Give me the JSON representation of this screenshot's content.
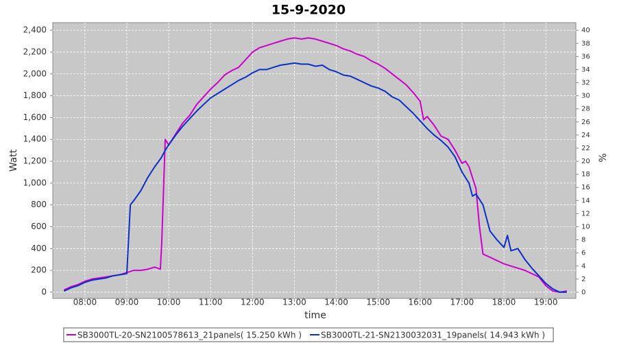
{
  "chart_data": {
    "type": "line",
    "title": "15-9-2020",
    "x_label": "time",
    "y_label": "Watt",
    "y2_label": "%",
    "x": [
      "07:30",
      "07:40",
      "07:50",
      "08:00",
      "08:10",
      "08:20",
      "08:30",
      "08:40",
      "08:50",
      "09:00",
      "09:05",
      "09:10",
      "09:20",
      "09:30",
      "09:40",
      "09:48",
      "09:50",
      "09:55",
      "10:00",
      "10:10",
      "10:20",
      "10:30",
      "10:40",
      "10:50",
      "11:00",
      "11:10",
      "11:20",
      "11:30",
      "11:40",
      "11:50",
      "12:00",
      "12:10",
      "12:20",
      "12:30",
      "12:40",
      "12:50",
      "13:00",
      "13:10",
      "13:20",
      "13:30",
      "13:40",
      "13:50",
      "14:00",
      "14:10",
      "14:20",
      "14:30",
      "14:40",
      "14:50",
      "15:00",
      "15:10",
      "15:20",
      "15:30",
      "15:40",
      "15:50",
      "16:00",
      "16:05",
      "16:10",
      "16:20",
      "16:30",
      "16:40",
      "16:50",
      "17:00",
      "17:05",
      "17:10",
      "17:15",
      "17:20",
      "17:25",
      "17:30",
      "17:40",
      "17:50",
      "18:00",
      "18:05",
      "18:10",
      "18:20",
      "18:30",
      "18:40",
      "18:50",
      "19:00",
      "19:10",
      "19:20",
      "19:30"
    ],
    "series": [
      {
        "name": "SB3000TL-20-SN2100578613_21panels( 15.250 kWh )",
        "color": "#cc00cc",
        "values": [
          20,
          50,
          70,
          100,
          120,
          130,
          140,
          150,
          160,
          180,
          190,
          200,
          200,
          210,
          230,
          210,
          450,
          1400,
          1350,
          1450,
          1550,
          1620,
          1720,
          1790,
          1860,
          1920,
          1990,
          2030,
          2060,
          2130,
          2200,
          2240,
          2260,
          2280,
          2300,
          2320,
          2330,
          2320,
          2330,
          2320,
          2300,
          2280,
          2260,
          2230,
          2210,
          2180,
          2160,
          2120,
          2090,
          2050,
          2000,
          1950,
          1900,
          1830,
          1750,
          1580,
          1610,
          1530,
          1430,
          1400,
          1300,
          1180,
          1200,
          1150,
          1050,
          950,
          600,
          350,
          320,
          290,
          260,
          250,
          240,
          220,
          200,
          170,
          140,
          60,
          10,
          0,
          10
        ]
      },
      {
        "name": "SB3000TL-21-SN2130032031_19panels( 14.943 kWh )",
        "color": "#0a2fc8",
        "values": [
          10,
          40,
          60,
          90,
          110,
          120,
          130,
          150,
          160,
          170,
          800,
          840,
          930,
          1050,
          1150,
          1220,
          1240,
          1300,
          1350,
          1440,
          1520,
          1590,
          1660,
          1720,
          1780,
          1820,
          1860,
          1900,
          1940,
          1970,
          2010,
          2040,
          2040,
          2060,
          2080,
          2090,
          2100,
          2090,
          2090,
          2070,
          2080,
          2040,
          2020,
          1990,
          1980,
          1950,
          1920,
          1890,
          1870,
          1840,
          1790,
          1760,
          1700,
          1640,
          1570,
          1535,
          1500,
          1440,
          1390,
          1330,
          1240,
          1100,
          1050,
          1000,
          880,
          900,
          850,
          800,
          560,
          480,
          410,
          520,
          380,
          400,
          300,
          220,
          150,
          80,
          30,
          0,
          0
        ]
      }
    ],
    "xlim": [
      "07:14",
      "19:43"
    ],
    "xticks": [
      "08:00",
      "09:00",
      "10:00",
      "11:00",
      "12:00",
      "13:00",
      "14:00",
      "15:00",
      "16:00",
      "17:00",
      "18:00",
      "19:00"
    ],
    "ylim": [
      -57,
      2470
    ],
    "yticks": [
      0,
      200,
      400,
      600,
      800,
      {
        "value": 1000,
        "label": "1,000"
      },
      {
        "value": 1200,
        "label": "1,200"
      },
      {
        "value": 1400,
        "label": "1,400"
      },
      {
        "value": 1600,
        "label": "1,600"
      },
      {
        "value": 1800,
        "label": "1,800"
      },
      {
        "value": 2000,
        "label": "2,000"
      },
      {
        "value": 2200,
        "label": "2,200"
      },
      {
        "value": 2400,
        "label": "2,400"
      }
    ],
    "y2lim": [
      -0.95,
      41.17
    ],
    "y2ticks": [
      0,
      2,
      4,
      6,
      8,
      10,
      12,
      14,
      16,
      18,
      20,
      22,
      24,
      26,
      28,
      30,
      32,
      34,
      36,
      38,
      40
    ],
    "grid": true,
    "legend": "bottom"
  }
}
